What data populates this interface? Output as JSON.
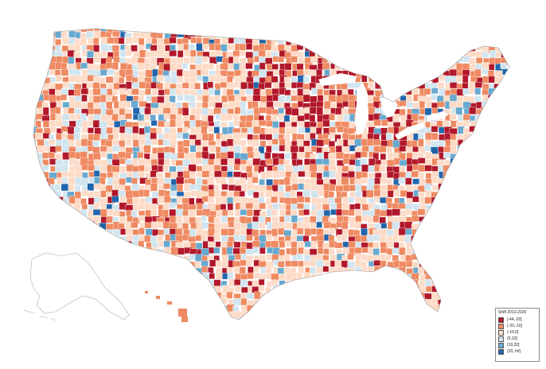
{
  "legend": {
    "title": "Shift 2012-2020",
    "items": [
      {
        "label": "[-44,-20]",
        "color": "#b2182b"
      },
      {
        "label": "(-20,-10]",
        "color": "#ef8a62"
      },
      {
        "label": "(-10,0]",
        "color": "#fddbc7"
      },
      {
        "label": "(0,10]",
        "color": "#d1e5f0"
      },
      {
        "label": "(10,20]",
        "color": "#67a9cf"
      },
      {
        "label": "(20, Inf]",
        "color": "#2166ac"
      }
    ]
  },
  "map": {
    "subject": "US counties choropleth",
    "border_color": "#ffffff",
    "outline_color": "#9a9a9a",
    "categories": [
      "[-44,-20]",
      "(-20,-10]",
      "(-10,0]",
      "(0,10]",
      "(10,20]",
      "(20, Inf]"
    ]
  }
}
